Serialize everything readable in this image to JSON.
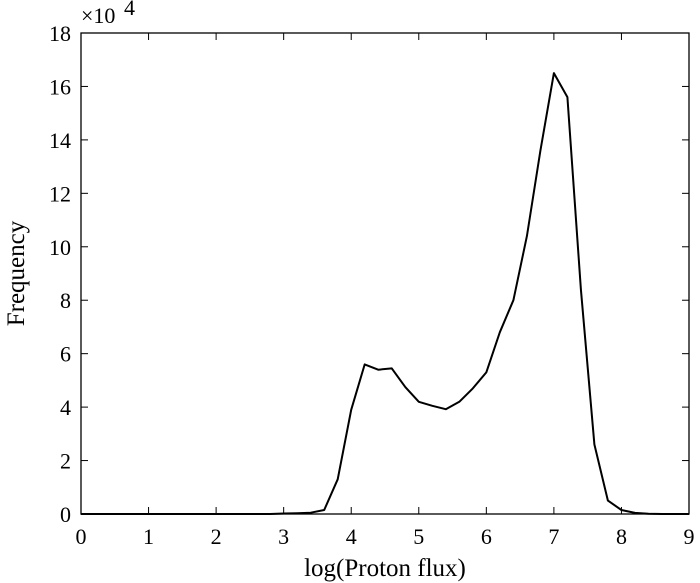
{
  "chart_data": {
    "type": "line",
    "xlabel": "log(Proton flux)",
    "ylabel": "Frequency",
    "y_multiplier_label": "×10",
    "y_multiplier_exponent": "4",
    "xlim": [
      0,
      9
    ],
    "ylim": [
      0,
      18
    ],
    "xticks": [
      0,
      1,
      2,
      3,
      4,
      5,
      6,
      7,
      8,
      9
    ],
    "yticks": [
      0,
      2,
      4,
      6,
      8,
      10,
      12,
      14,
      16,
      18
    ],
    "xtick_labels": [
      "0",
      "1",
      "2",
      "3",
      "4",
      "5",
      "6",
      "7",
      "8",
      "9"
    ],
    "ytick_labels": [
      "0",
      "2",
      "4",
      "6",
      "8",
      "10",
      "12",
      "14",
      "16",
      "18"
    ],
    "grid": false,
    "legend": "none",
    "series": [
      {
        "x": [
          0.0,
          2.8,
          3.0,
          3.2,
          3.4,
          3.6,
          3.8,
          4.0,
          4.2,
          4.4,
          4.6,
          4.8,
          5.0,
          5.2,
          5.4,
          5.6,
          5.8,
          6.0,
          6.2,
          6.4,
          6.6,
          6.8,
          7.0,
          7.2,
          7.4,
          7.6,
          7.8,
          8.0,
          8.2,
          8.4,
          8.6,
          9.0
        ],
        "values": [
          0,
          0,
          0.02,
          0.03,
          0.05,
          0.15,
          1.3,
          3.9,
          5.6,
          5.4,
          5.45,
          4.75,
          4.2,
          4.05,
          3.92,
          4.2,
          4.7,
          5.3,
          6.8,
          8.0,
          10.4,
          13.6,
          16.5,
          15.6,
          8.4,
          2.6,
          0.5,
          0.15,
          0.04,
          0.01,
          0,
          0
        ]
      }
    ]
  }
}
